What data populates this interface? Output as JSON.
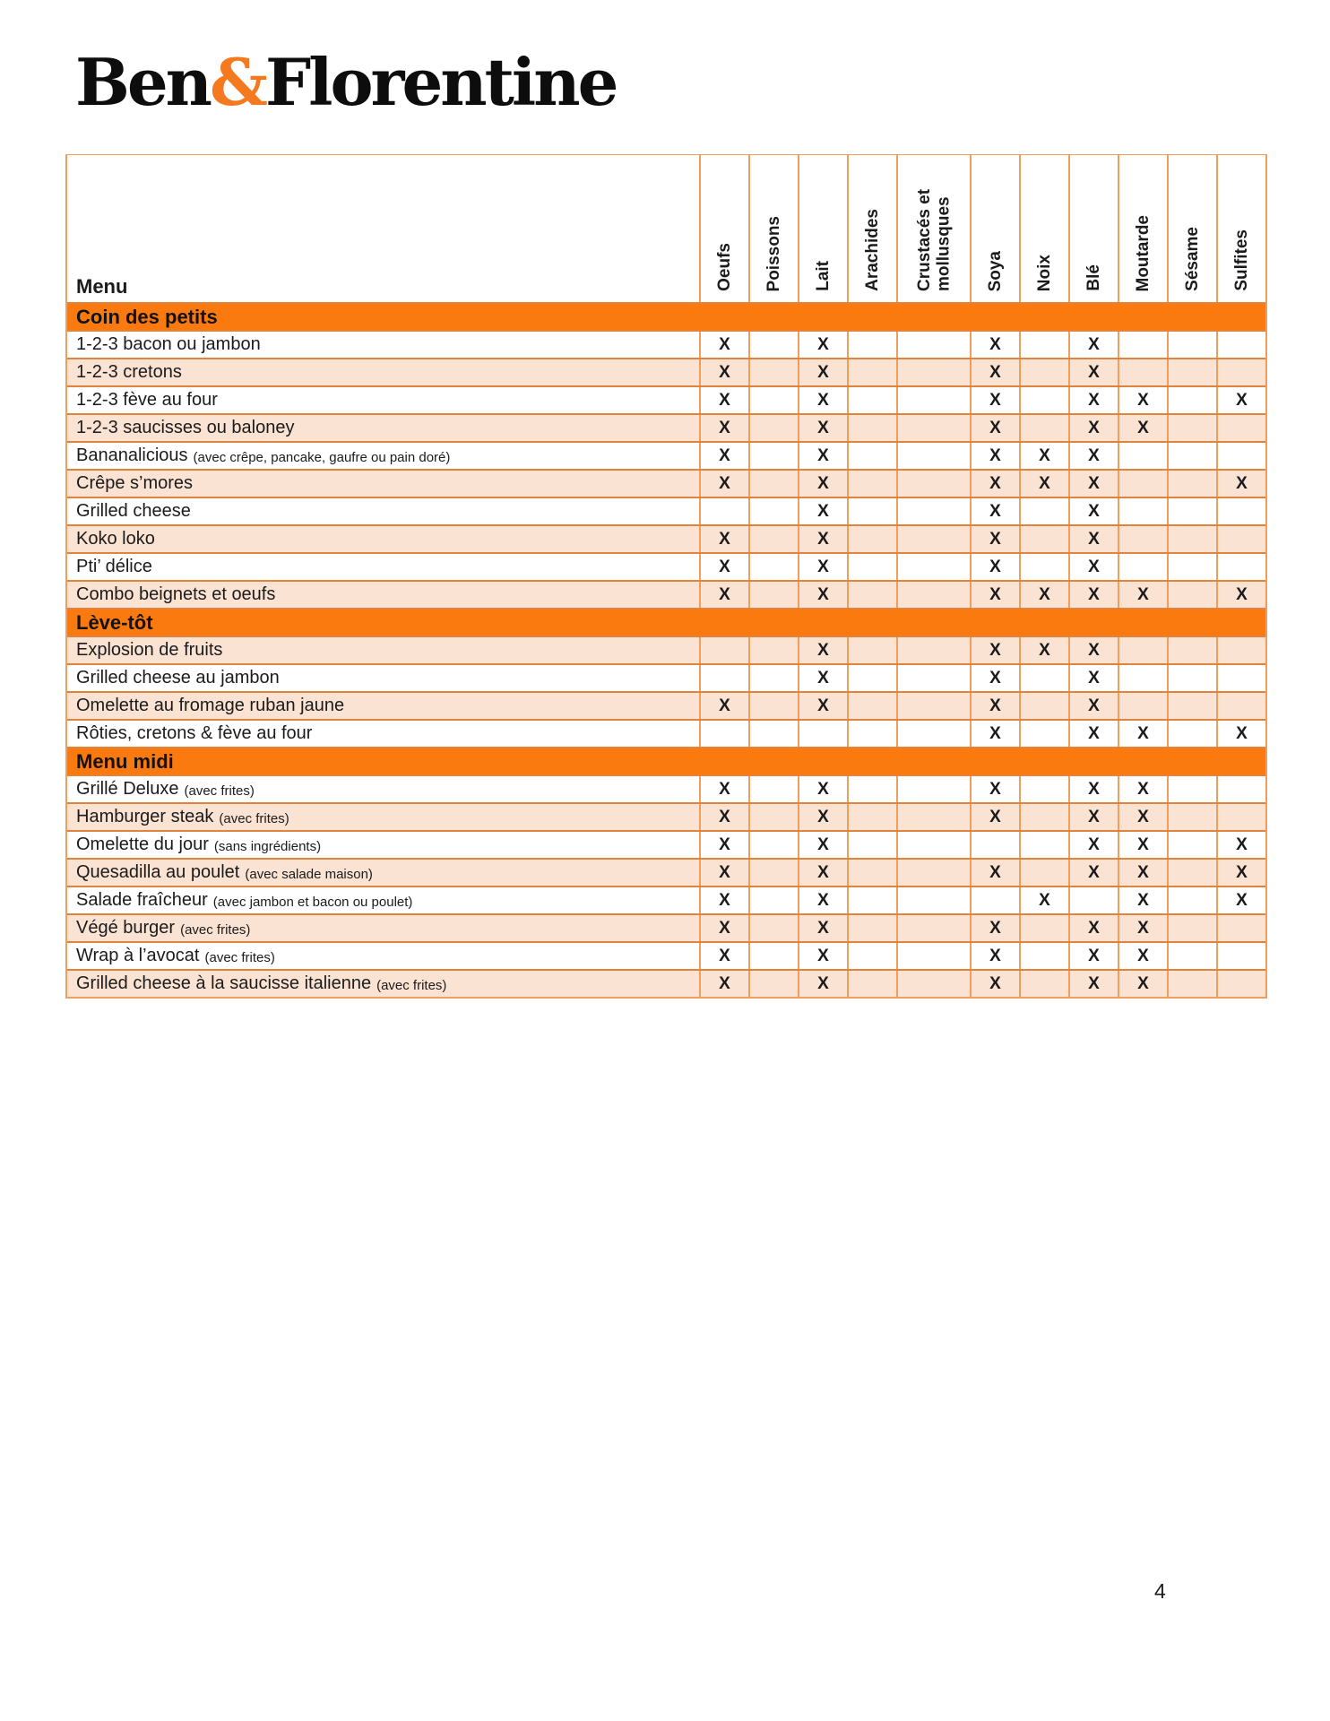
{
  "logo": {
    "ben": "Ben",
    "ampersand": "&",
    "florentine": "Florentine"
  },
  "page": {
    "number": "4"
  },
  "colors": {
    "section_bg": "#FB7A10",
    "row_alt_bg": "#FBE3D4",
    "grid_horizontal": "#E2833B",
    "grid_vertical": "#F09E5C",
    "logo_ampersand": "#F4791F",
    "text": "#1B1B1B"
  },
  "table": {
    "menu_label": "Menu",
    "mark": "X",
    "columns": [
      "Oeufs",
      "Poissons",
      "Lait",
      "Arachides",
      "Crustacés et mollusques",
      "Soya",
      "Noix",
      "Blé",
      "Moutarde",
      "Sésame",
      "Sulfites"
    ],
    "rows": [
      {
        "type": "section",
        "label": "Coin des petits"
      },
      {
        "type": "item",
        "label": "1-2-3 bacon ou jambon",
        "note": "",
        "marks": [
          1,
          0,
          1,
          0,
          0,
          1,
          0,
          1,
          0,
          0,
          0
        ]
      },
      {
        "type": "item",
        "label": "1-2-3 cretons",
        "note": "",
        "marks": [
          1,
          0,
          1,
          0,
          0,
          1,
          0,
          1,
          0,
          0,
          0
        ]
      },
      {
        "type": "item",
        "label": "1-2-3 fève au four",
        "note": "",
        "marks": [
          1,
          0,
          1,
          0,
          0,
          1,
          0,
          1,
          1,
          0,
          1
        ]
      },
      {
        "type": "item",
        "label": "1-2-3 saucisses ou baloney",
        "note": "",
        "marks": [
          1,
          0,
          1,
          0,
          0,
          1,
          0,
          1,
          1,
          0,
          0
        ]
      },
      {
        "type": "item",
        "label": "Bananalicious",
        "note": "(avec crêpe, pancake, gaufre ou pain doré)",
        "marks": [
          1,
          0,
          1,
          0,
          0,
          1,
          1,
          1,
          0,
          0,
          0
        ]
      },
      {
        "type": "item",
        "label": "Crêpe s’mores",
        "note": "",
        "marks": [
          1,
          0,
          1,
          0,
          0,
          1,
          1,
          1,
          0,
          0,
          1
        ]
      },
      {
        "type": "item",
        "label": "Grilled cheese",
        "note": "",
        "marks": [
          0,
          0,
          1,
          0,
          0,
          1,
          0,
          1,
          0,
          0,
          0
        ]
      },
      {
        "type": "item",
        "label": "Koko loko",
        "note": "",
        "marks": [
          1,
          0,
          1,
          0,
          0,
          1,
          0,
          1,
          0,
          0,
          0
        ]
      },
      {
        "type": "item",
        "label": "Pti’ délice",
        "note": "",
        "marks": [
          1,
          0,
          1,
          0,
          0,
          1,
          0,
          1,
          0,
          0,
          0
        ]
      },
      {
        "type": "item",
        "label": "Combo beignets et oeufs",
        "note": "",
        "marks": [
          1,
          0,
          1,
          0,
          0,
          1,
          1,
          1,
          1,
          0,
          1
        ]
      },
      {
        "type": "section",
        "label": "Lève-tôt"
      },
      {
        "type": "item",
        "label": "Explosion de fruits",
        "note": "",
        "marks": [
          0,
          0,
          1,
          0,
          0,
          1,
          1,
          1,
          0,
          0,
          0
        ]
      },
      {
        "type": "item",
        "label": "Grilled cheese au jambon",
        "note": "",
        "marks": [
          0,
          0,
          1,
          0,
          0,
          1,
          0,
          1,
          0,
          0,
          0
        ]
      },
      {
        "type": "item",
        "label": "Omelette au fromage ruban jaune",
        "note": "",
        "marks": [
          1,
          0,
          1,
          0,
          0,
          1,
          0,
          1,
          0,
          0,
          0
        ]
      },
      {
        "type": "item",
        "label": "Rôties, cretons & fève au four",
        "note": "",
        "marks": [
          0,
          0,
          0,
          0,
          0,
          1,
          0,
          1,
          1,
          0,
          1
        ]
      },
      {
        "type": "section",
        "label": "Menu midi"
      },
      {
        "type": "item",
        "label": "Grillé Deluxe",
        "note": "(avec frites)",
        "marks": [
          1,
          0,
          1,
          0,
          0,
          1,
          0,
          1,
          1,
          0,
          0
        ]
      },
      {
        "type": "item",
        "label": "Hamburger steak",
        "note": "(avec frites)",
        "marks": [
          1,
          0,
          1,
          0,
          0,
          1,
          0,
          1,
          1,
          0,
          0
        ]
      },
      {
        "type": "item",
        "label": "Omelette du jour",
        "note": "(sans ingrédients)",
        "marks": [
          1,
          0,
          1,
          0,
          0,
          0,
          0,
          1,
          1,
          0,
          1
        ]
      },
      {
        "type": "item",
        "label": "Quesadilla au poulet",
        "note": "(avec salade maison)",
        "marks": [
          1,
          0,
          1,
          0,
          0,
          1,
          0,
          1,
          1,
          0,
          1
        ]
      },
      {
        "type": "item",
        "label": "Salade fraîcheur",
        "note": "(avec jambon et bacon ou poulet)",
        "marks": [
          1,
          0,
          1,
          0,
          0,
          0,
          1,
          0,
          1,
          0,
          1
        ]
      },
      {
        "type": "item",
        "label": "Végé burger",
        "note": "(avec frites)",
        "marks": [
          1,
          0,
          1,
          0,
          0,
          1,
          0,
          1,
          1,
          0,
          0
        ]
      },
      {
        "type": "item",
        "label": "Wrap à l’avocat",
        "note": "(avec frites)",
        "marks": [
          1,
          0,
          1,
          0,
          0,
          1,
          0,
          1,
          1,
          0,
          0
        ]
      },
      {
        "type": "item",
        "label": "Grilled cheese à la saucisse italienne",
        "note": "(avec frites)",
        "marks": [
          1,
          0,
          1,
          0,
          0,
          1,
          0,
          1,
          1,
          0,
          0
        ]
      }
    ]
  }
}
